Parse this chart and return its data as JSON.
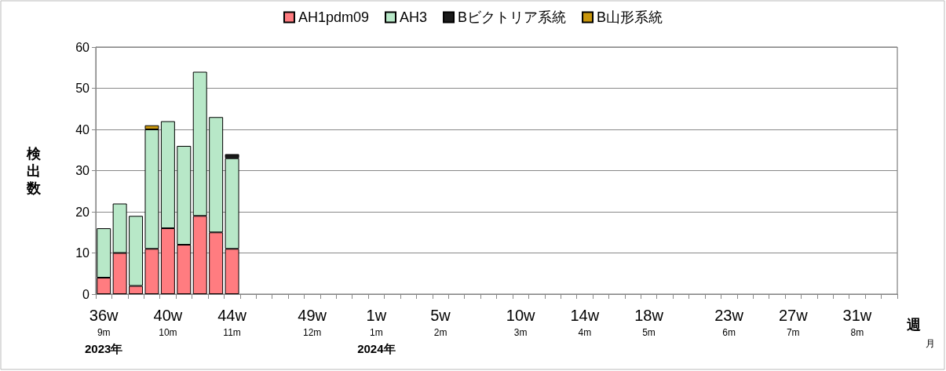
{
  "chart_data": {
    "type": "bar",
    "stacked": true,
    "ylabel": "検出数",
    "xlabel": "週",
    "annotations": [
      "月"
    ],
    "categories": [
      "36w\n9m\n2023年",
      null,
      null,
      null,
      "40w\n10m",
      null,
      null,
      null,
      "44w\n11m",
      null,
      null,
      null,
      null,
      "49w\n12m",
      null,
      null,
      null,
      "1w\n1m\n2024年",
      null,
      null,
      null,
      "5w\n2m",
      null,
      null,
      null,
      null,
      "10w\n3m",
      null,
      null,
      null,
      "14w\n4m",
      null,
      null,
      null,
      "18w\n5m",
      null,
      null,
      null,
      null,
      "23w\n6m",
      null,
      null,
      null,
      "27w\n7m",
      null,
      null,
      null,
      "31w\n8m",
      null,
      null
    ],
    "series": [
      {
        "name": "AH1pdm09",
        "color": "#ff7c80",
        "values": [
          4,
          10,
          2,
          11,
          16,
          12,
          19,
          15,
          11,
          null,
          null,
          null,
          null,
          null,
          null,
          null,
          null,
          null,
          null,
          null,
          null,
          null,
          null,
          null,
          null,
          null,
          null,
          null,
          null,
          null,
          null,
          null,
          null,
          null,
          null,
          null,
          null,
          null,
          null,
          null,
          null,
          null,
          null,
          null,
          null,
          null,
          null,
          null,
          null,
          null
        ]
      },
      {
        "name": "AH3",
        "color": "#b8e8c8",
        "values": [
          12,
          12,
          17,
          29,
          26,
          24,
          35,
          28,
          22,
          null,
          null,
          null,
          null,
          null,
          null,
          null,
          null,
          null,
          null,
          null,
          null,
          null,
          null,
          null,
          null,
          null,
          null,
          null,
          null,
          null,
          null,
          null,
          null,
          null,
          null,
          null,
          null,
          null,
          null,
          null,
          null,
          null,
          null,
          null,
          null,
          null,
          null,
          null,
          null,
          null
        ]
      },
      {
        "name": "Bビクトリア系統",
        "color": "#1a1a1a",
        "values": [
          null,
          null,
          null,
          null,
          null,
          null,
          null,
          null,
          1,
          null,
          null,
          null,
          null,
          null,
          null,
          null,
          null,
          null,
          null,
          null,
          null,
          null,
          null,
          null,
          null,
          null,
          null,
          null,
          null,
          null,
          null,
          null,
          null,
          null,
          null,
          null,
          null,
          null,
          null,
          null,
          null,
          null,
          null,
          null,
          null,
          null,
          null,
          null,
          null,
          null
        ]
      },
      {
        "name": "B山形系統",
        "color": "#c8960c",
        "values": [
          null,
          null,
          null,
          1,
          null,
          null,
          null,
          null,
          null,
          null,
          null,
          null,
          null,
          null,
          null,
          null,
          null,
          null,
          null,
          null,
          null,
          null,
          null,
          null,
          null,
          null,
          null,
          null,
          null,
          null,
          null,
          null,
          null,
          null,
          null,
          null,
          null,
          null,
          null,
          null,
          null,
          null,
          null,
          null,
          null,
          null,
          null,
          null,
          null,
          null
        ]
      }
    ],
    "ylim": [
      0,
      60
    ],
    "yticks": [
      0,
      10,
      20,
      30,
      40,
      50,
      60
    ],
    "grid": "y",
    "legend": "top"
  }
}
